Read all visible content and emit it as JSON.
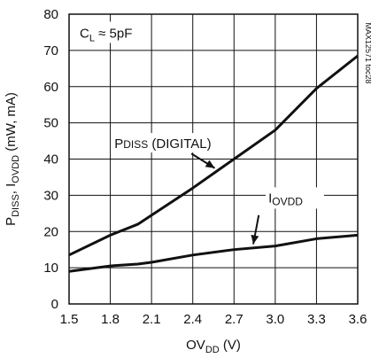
{
  "chart_data": {
    "type": "line",
    "x": [
      1.5,
      1.8,
      2.0,
      2.1,
      2.4,
      2.7,
      3.0,
      3.3,
      3.6
    ],
    "series": [
      {
        "name": "PDISS (DIGITAL)",
        "values": [
          13.5,
          19,
          22,
          24.5,
          32,
          40,
          48,
          59.5,
          68.5
        ]
      },
      {
        "name": "IOVDD",
        "values": [
          9,
          10.5,
          11,
          11.5,
          13.5,
          15,
          16,
          18,
          19
        ]
      }
    ],
    "xticks": [
      "1.5",
      "1.8",
      "2.1",
      "2.4",
      "2.7",
      "3.0",
      "3.3",
      "3.6"
    ],
    "yticks": [
      "0",
      "10",
      "20",
      "30",
      "40",
      "50",
      "60",
      "70",
      "80"
    ],
    "xlim": [
      1.5,
      3.6
    ],
    "ylim": [
      0,
      80
    ],
    "grid": true,
    "xlabel": {
      "main": "OV",
      "sub": "DD",
      "tail": " (V)"
    },
    "ylabel": {
      "a": "P",
      "a_sub": "DISS",
      "b": ", I",
      "b_sub": "OVDD",
      "c": " (mW, mA)"
    },
    "annotations": {
      "condition": {
        "main": "C",
        "sub": "L",
        "tail": " ≈ 5pF"
      },
      "pdiss": {
        "main": "P",
        "sub": "DISS",
        "tail": " (DIGITAL)"
      },
      "iovdd": {
        "main": "I",
        "sub": "OVDD"
      }
    },
    "part_number": "MAX12571 toc28"
  }
}
